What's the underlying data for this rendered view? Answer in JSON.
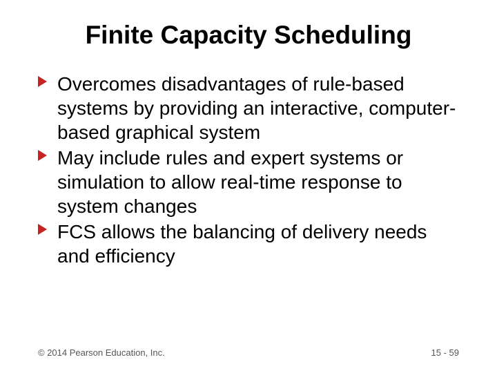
{
  "slide": {
    "title": "Finite Capacity Scheduling",
    "title_fontsize": 37,
    "title_color": "#000000",
    "bullets": [
      "Overcomes disadvantages of rule-based systems by providing an interactive, computer-based graphical system",
      "May include rules and expert systems or simulation to allow real-time response to system changes",
      "FCS allows the balancing of delivery needs and efficiency"
    ],
    "bullet_fontsize": 28,
    "bullet_color": "#000000",
    "bullet_marker_color": "#c72323",
    "background_color": "#ffffff"
  },
  "footer": {
    "copyright": "© 2014 Pearson Education, Inc.",
    "page": "15 - 59",
    "fontsize": 13,
    "color": "#555555"
  }
}
